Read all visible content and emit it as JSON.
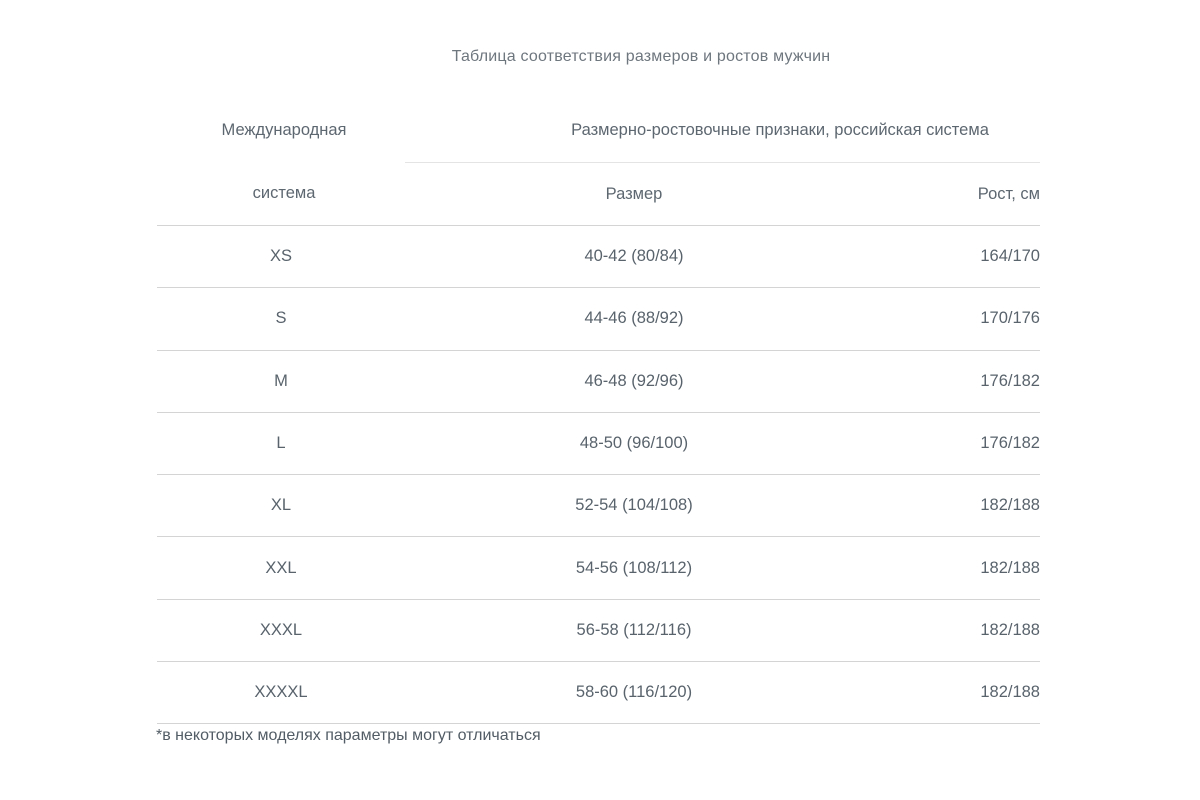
{
  "title": "Таблица соответствия размеров и ростов мужчин",
  "table": {
    "col1_header_line1": "Международная",
    "col1_header_line2": "система",
    "group_header": "Размерно-ростовочные признаки, российская система",
    "col2_header": "Размер",
    "col3_header": "Рост, см",
    "rows": [
      {
        "international": "XS",
        "size": "40-42 (80/84)",
        "height": "164/170"
      },
      {
        "international": "S",
        "size": "44-46 (88/92)",
        "height": "170/176"
      },
      {
        "international": "M",
        "size": "46-48 (92/96)",
        "height": "176/182"
      },
      {
        "international": "L",
        "size": "48-50 (96/100)",
        "height": "176/182"
      },
      {
        "international": "XL",
        "size": "52-54 (104/108)",
        "height": "182/188"
      },
      {
        "international": "XXL",
        "size": "54-56 (108/112)",
        "height": "182/188"
      },
      {
        "international": "XXXL",
        "size": "56-58 (112/116)",
        "height": "182/188"
      },
      {
        "international": "XXXXL",
        "size": "58-60 (116/120)",
        "height": "182/188"
      }
    ]
  },
  "footnote": "*в некоторых моделях параметры могут отличаться"
}
